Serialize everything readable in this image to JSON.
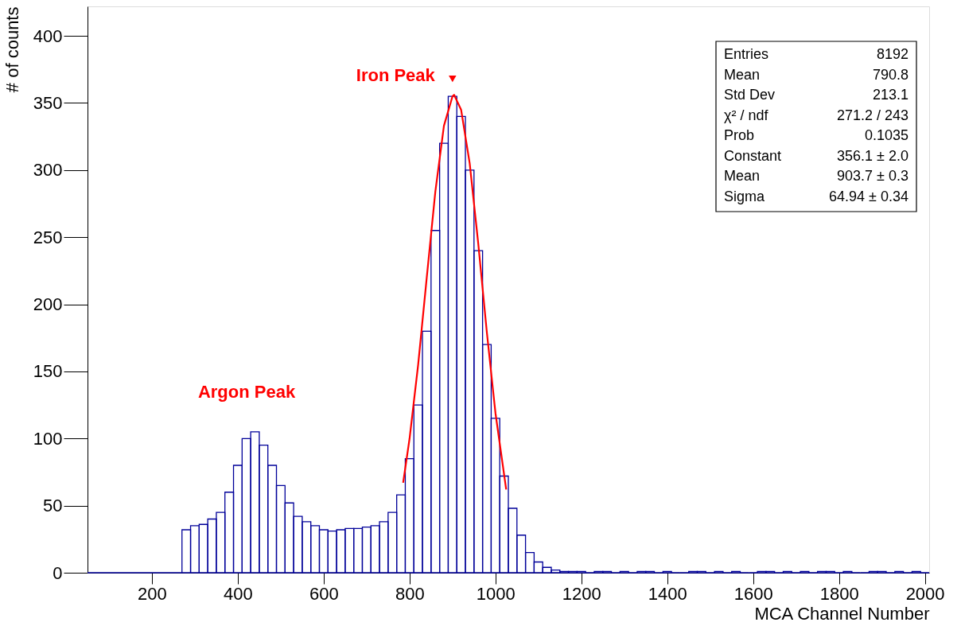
{
  "chart_data": {
    "type": "histogram",
    "xlabel": "MCA Channel Number",
    "ylabel": "# of counts",
    "xlim": [
      50,
      2010
    ],
    "ylim": [
      0,
      422
    ],
    "xticks": [
      200,
      400,
      600,
      800,
      1000,
      1200,
      1400,
      1600,
      1800,
      2000
    ],
    "yticks": [
      0,
      50,
      100,
      150,
      200,
      250,
      300,
      350,
      400
    ],
    "grid": false,
    "bins": [
      50,
      270,
      290,
      310,
      330,
      350,
      370,
      390,
      410,
      430,
      450,
      470,
      490,
      510,
      530,
      550,
      570,
      590,
      610,
      630,
      650,
      670,
      690,
      710,
      730,
      750,
      770,
      790,
      810,
      830,
      850,
      870,
      890,
      910,
      930,
      950,
      970,
      990,
      1010,
      1030,
      1050,
      1070,
      1090,
      1110,
      1130,
      1150,
      1170,
      1190,
      1210,
      1230,
      1250,
      1270,
      1290,
      1310,
      1330,
      1350,
      1370,
      1390,
      1410,
      1430,
      1450,
      1470,
      1490,
      1510,
      1530,
      1550,
      1570,
      1590,
      1610,
      1630,
      1650,
      1670,
      1690,
      1710,
      1730,
      1750,
      1770,
      1790,
      1810,
      1830,
      1850,
      1870,
      1890,
      1910,
      1930,
      1950,
      1970,
      1990,
      2010
    ],
    "series": [
      {
        "color": "#000099",
        "values": [
          0,
          32,
          35,
          36,
          40,
          45,
          60,
          80,
          100,
          105,
          95,
          80,
          65,
          52,
          42,
          38,
          35,
          32,
          31,
          32,
          33,
          33,
          34,
          35,
          38,
          45,
          58,
          85,
          125,
          180,
          255,
          320,
          355,
          340,
          300,
          240,
          170,
          115,
          72,
          48,
          28,
          15,
          8,
          4,
          2,
          1,
          1,
          1,
          0,
          1,
          1,
          0,
          1,
          0,
          1,
          1,
          0,
          1,
          0,
          0,
          1,
          1,
          0,
          1,
          0,
          1,
          0,
          0,
          1,
          1,
          0,
          1,
          0,
          1,
          0,
          1,
          1,
          0,
          1,
          0,
          0,
          1,
          1,
          0,
          1,
          0,
          1,
          0
        ]
      },
      {
        "type": "line",
        "color": "#ff0000",
        "x": [
          785,
          800,
          820,
          840,
          860,
          880,
          900,
          903.7,
          920,
          940,
          960,
          980,
          1000,
          1025
        ],
        "values": [
          67,
          100,
          155,
          220,
          284,
          333,
          355,
          356.1,
          345,
          305,
          245,
          179,
          119,
          62
        ]
      }
    ],
    "annotations": [
      {
        "text": "Iron Peak",
        "x": 900,
        "y": 368
      },
      "Argon Peak",
      "Entries",
      "8192",
      "Mean",
      "790.8",
      "Std Dev",
      "213.1",
      "χ² / ndf",
      "271.2 / 243",
      "Prob",
      "0.1035",
      "Constant",
      "356.1 ± 2.0",
      "Mean",
      "903.7 ± 0.3",
      "Sigma",
      "64.94 ± 0.34"
    ]
  }
}
